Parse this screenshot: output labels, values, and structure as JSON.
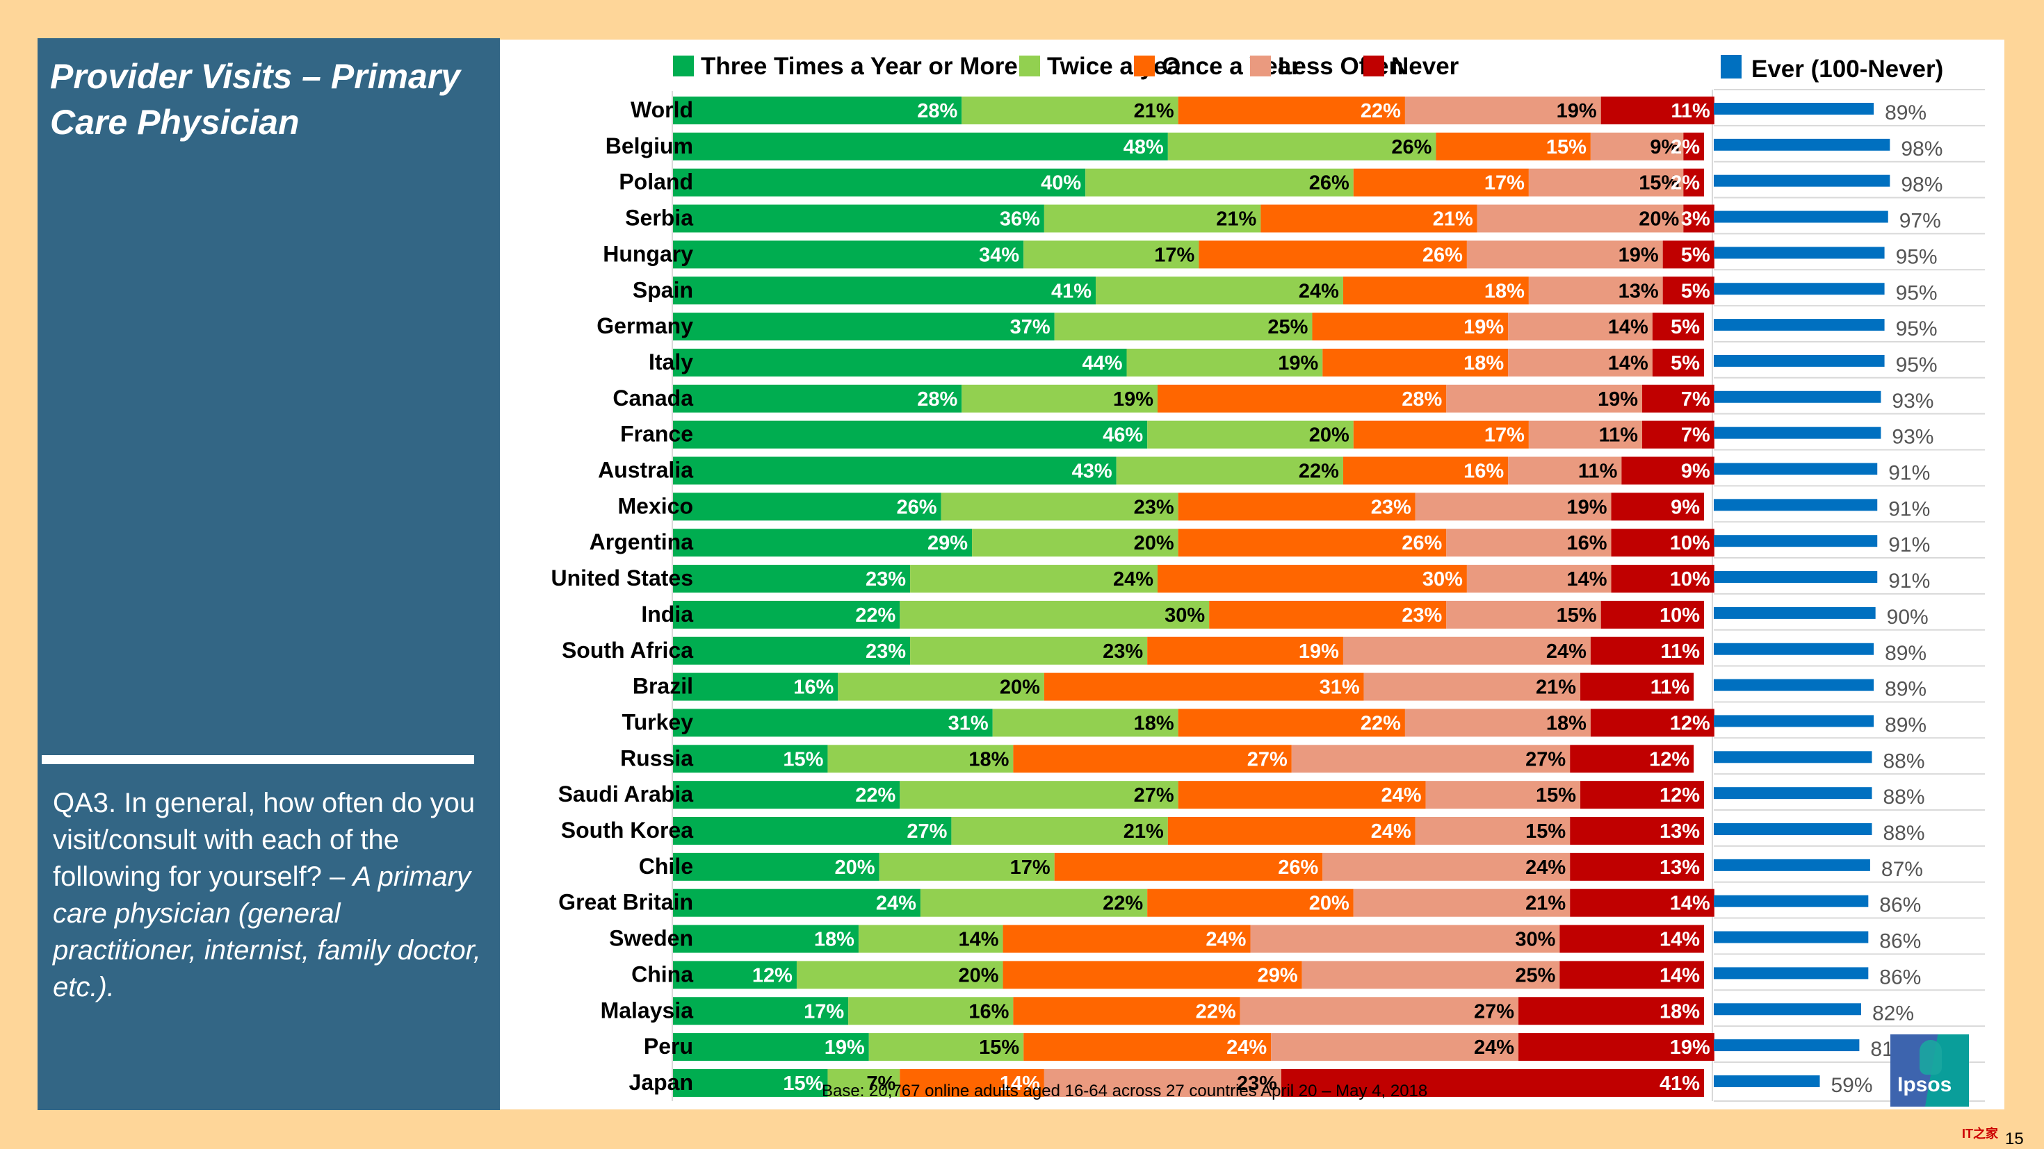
{
  "slide": {
    "title": "Provider Visits – Primary Care Physician",
    "question_plain": "QA3. In general, how often do you visit/consult with each of the following for yourself? – ",
    "question_italic": "A primary care physician (general practitioner, internist, family doctor, etc.).",
    "footnote": "Base: 20,767 online adults aged 16-64 across 27 countries  April 20 – May 4, 2018",
    "logo_text": "Ipsos",
    "watermark": "IT之家",
    "page_number": "15"
  },
  "chart_data": {
    "type": "bar",
    "subtype": "stacked-horizontal-100 with companion bar",
    "title": "Provider Visits – Primary Care Physician",
    "xlabel": "",
    "ylabel": "",
    "xlim": [
      0,
      100
    ],
    "grid": false,
    "legend_position": "top",
    "categories": [
      "World",
      "Belgium",
      "Poland",
      "Serbia",
      "Hungary",
      "Spain",
      "Germany",
      "Italy",
      "Canada",
      "France",
      "Australia",
      "Mexico",
      "Argentina",
      "United States",
      "India",
      "South Africa",
      "Brazil",
      "Turkey",
      "Russia",
      "Saudi Arabia",
      "South Korea",
      "Chile",
      "Great Britain",
      "Sweden",
      "China",
      "Malaysia",
      "Peru",
      "Japan"
    ],
    "series": [
      {
        "name": "Three Times a Year or More",
        "color": "#00ad50",
        "label_color": "#ffffff",
        "values": [
          28,
          48,
          40,
          36,
          34,
          41,
          37,
          44,
          28,
          46,
          43,
          26,
          29,
          23,
          22,
          23,
          16,
          31,
          15,
          22,
          27,
          20,
          24,
          18,
          12,
          17,
          19,
          15
        ]
      },
      {
        "name": "Twice a year",
        "color": "#92d050",
        "label_color": "#000000",
        "values": [
          21,
          26,
          26,
          21,
          17,
          24,
          25,
          19,
          19,
          20,
          22,
          23,
          20,
          24,
          30,
          23,
          20,
          18,
          18,
          27,
          21,
          17,
          22,
          14,
          20,
          16,
          15,
          7
        ]
      },
      {
        "name": "Once a Year",
        "color": "#ff6600",
        "label_color": "#ffffff",
        "values": [
          22,
          15,
          17,
          21,
          26,
          18,
          19,
          18,
          28,
          17,
          16,
          23,
          26,
          30,
          23,
          19,
          31,
          22,
          27,
          24,
          24,
          26,
          20,
          24,
          29,
          22,
          24,
          14
        ]
      },
      {
        "name": "Less Often",
        "color": "#ea9a7f",
        "label_color": "#000000",
        "values": [
          19,
          9,
          15,
          20,
          19,
          13,
          14,
          14,
          19,
          11,
          11,
          19,
          16,
          14,
          15,
          24,
          21,
          18,
          27,
          15,
          15,
          24,
          21,
          30,
          25,
          27,
          24,
          23
        ]
      },
      {
        "name": "Never",
        "color": "#c00000",
        "label_color": "#ffffff",
        "values": [
          11,
          2,
          2,
          3,
          5,
          5,
          5,
          5,
          7,
          7,
          9,
          9,
          10,
          10,
          10,
          11,
          11,
          12,
          12,
          12,
          13,
          13,
          14,
          14,
          14,
          18,
          19,
          41
        ]
      }
    ],
    "companion": {
      "name": "Ever (100-Never)",
      "color": "#0070c0",
      "label_color": "#555555",
      "values": [
        89,
        98,
        98,
        97,
        95,
        95,
        95,
        95,
        93,
        93,
        91,
        91,
        91,
        91,
        90,
        89,
        89,
        89,
        88,
        88,
        88,
        87,
        86,
        86,
        86,
        82,
        81,
        59
      ]
    }
  }
}
